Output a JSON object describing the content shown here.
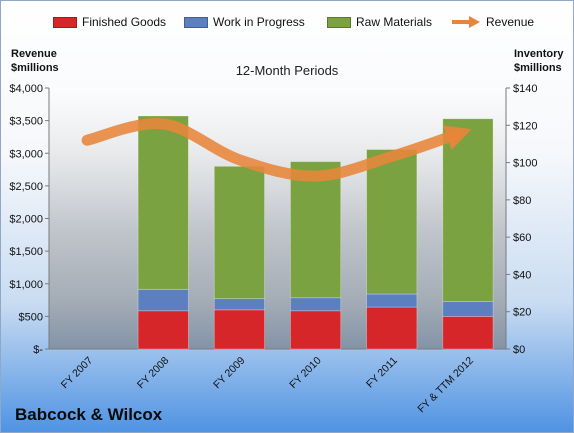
{
  "chart_data": {
    "type": "bar",
    "subtitle": "12-Month Periods",
    "categories": [
      "FY 2007",
      "FY 2008",
      "FY 2009",
      "FY 2010",
      "FY 2011",
      "FY & TTM 2012"
    ],
    "stacked_series": [
      {
        "name": "Finished Goods",
        "color": "#d6262a",
        "values": [
          0,
          20.5,
          21,
          20.5,
          22.5,
          17.5
        ]
      },
      {
        "name": "Work in Progress",
        "color": "#5b7fbf",
        "values": [
          0,
          11.5,
          6,
          7,
          7,
          8
        ]
      },
      {
        "name": "Raw Materials",
        "color": "#7ba241",
        "values": [
          0,
          93,
          71,
          73,
          77.5,
          98
        ]
      }
    ],
    "line_series": {
      "name": "Revenue",
      "color": "#e8853a",
      "values": [
        3200,
        3450,
        2900,
        2650,
        2950,
        3350
      ]
    },
    "left_axis": {
      "label_line1": "Revenue",
      "label_line2": "$millions",
      "ylim": [
        0,
        4000
      ],
      "tick_labels": [
        "$-",
        "$500",
        "$1,000",
        "$1,500",
        "$2,000",
        "$2,500",
        "$3,000",
        "$3,500",
        "$4,000"
      ]
    },
    "right_axis": {
      "label_line1": "Inventory",
      "label_line2": "$millions",
      "ylim": [
        0,
        140
      ],
      "tick_labels": [
        "$0",
        "$20",
        "$40",
        "$60",
        "$80",
        "$100",
        "$120",
        "$140"
      ]
    },
    "legend_position": "top",
    "grid": false
  },
  "company": "Babcock & Wilcox"
}
